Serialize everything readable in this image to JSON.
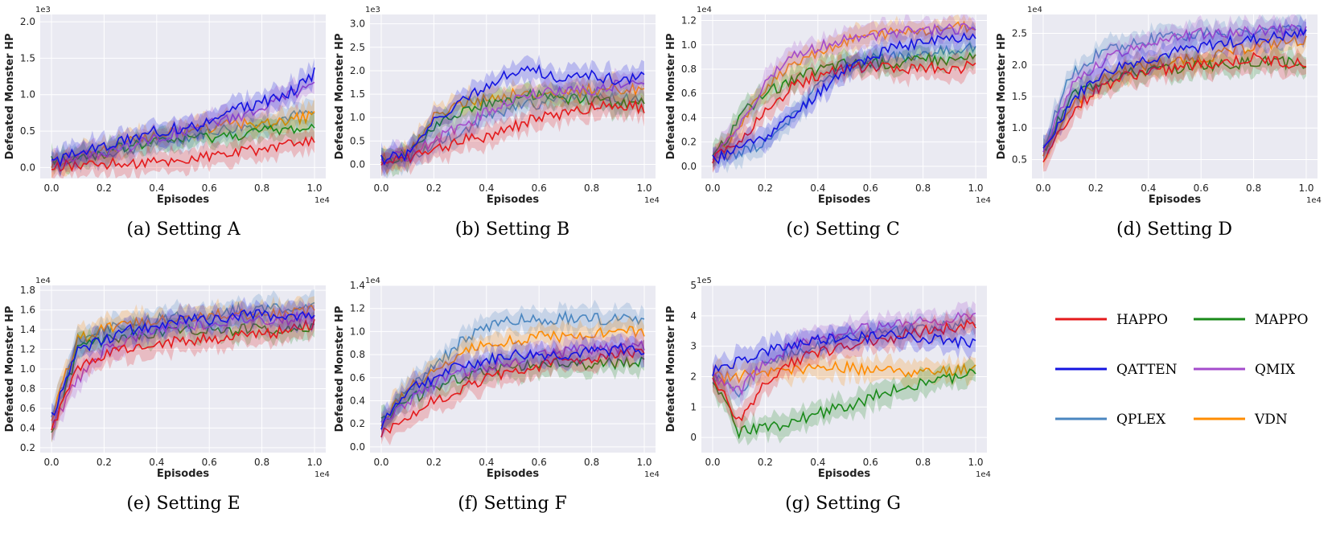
{
  "chart_data": [
    {
      "type": "line",
      "title": "",
      "caption": "(a) Setting A",
      "xlabel": "Episodes",
      "ylabel": "Defeated Monster HP",
      "x_exponent": "1e4",
      "y_exponent": "1e3",
      "xlim": [
        0,
        1.0
      ],
      "ylim": [
        -0.15,
        2.1
      ],
      "xticks": [
        "0.0",
        "0.2",
        "0.4",
        "0.6",
        "0.8",
        "1.0"
      ],
      "yticks": [
        "0.0",
        "0.5",
        "1.0",
        "1.5",
        "2.0"
      ],
      "x": [
        0,
        0.1,
        0.2,
        0.3,
        0.4,
        0.5,
        0.6,
        0.7,
        0.8,
        0.9,
        1.0
      ],
      "series": [
        {
          "name": "HAPPO",
          "values": [
            0.02,
            0.03,
            0.05,
            0.05,
            0.07,
            0.1,
            0.15,
            0.2,
            0.25,
            0.3,
            0.35
          ]
        },
        {
          "name": "MAPPO",
          "values": [
            0.1,
            0.12,
            0.2,
            0.3,
            0.35,
            0.4,
            0.42,
            0.45,
            0.5,
            0.52,
            0.55
          ]
        },
        {
          "name": "QATTEN",
          "values": [
            0.05,
            0.2,
            0.3,
            0.4,
            0.5,
            0.55,
            0.6,
            0.8,
            0.9,
            1.0,
            1.3
          ]
        },
        {
          "name": "QMIX",
          "values": [
            0.08,
            0.15,
            0.2,
            0.3,
            0.4,
            0.5,
            0.6,
            0.7,
            0.8,
            1.0,
            1.1
          ]
        },
        {
          "name": "QPLEX",
          "values": [
            0.1,
            0.15,
            0.2,
            0.25,
            0.35,
            0.4,
            0.5,
            0.55,
            0.6,
            0.7,
            0.75
          ]
        },
        {
          "name": "VDN",
          "values": [
            0.05,
            0.15,
            0.25,
            0.35,
            0.45,
            0.5,
            0.55,
            0.6,
            0.6,
            0.65,
            0.7
          ]
        }
      ]
    },
    {
      "type": "line",
      "title": "",
      "caption": "(b) Setting B",
      "xlabel": "Episodes",
      "ylabel": "Defeated Monster HP",
      "x_exponent": "1e4",
      "y_exponent": "1e3",
      "xlim": [
        0,
        1.0
      ],
      "ylim": [
        -0.3,
        3.2
      ],
      "xticks": [
        "0.0",
        "0.2",
        "0.4",
        "0.6",
        "0.8",
        "1.0"
      ],
      "yticks": [
        "0.0",
        "0.5",
        "1.0",
        "1.5",
        "2.0",
        "2.5",
        "3.0"
      ],
      "x": [
        0,
        0.1,
        0.2,
        0.3,
        0.4,
        0.5,
        0.6,
        0.7,
        0.8,
        0.9,
        1.0
      ],
      "series": [
        {
          "name": "HAPPO",
          "values": [
            0.05,
            0.1,
            0.3,
            0.5,
            0.6,
            0.8,
            1.0,
            1.1,
            1.2,
            1.3,
            1.2
          ]
        },
        {
          "name": "MAPPO",
          "values": [
            0.1,
            0.2,
            0.8,
            1.1,
            1.3,
            1.4,
            1.5,
            1.4,
            1.4,
            1.3,
            1.4
          ]
        },
        {
          "name": "QATTEN",
          "values": [
            0.1,
            0.2,
            0.9,
            1.3,
            1.7,
            2.0,
            2.0,
            1.8,
            1.9,
            1.8,
            1.9
          ]
        },
        {
          "name": "QMIX",
          "values": [
            0.1,
            0.2,
            0.5,
            0.8,
            1.1,
            1.4,
            1.5,
            1.6,
            1.6,
            1.7,
            1.7
          ]
        },
        {
          "name": "QPLEX",
          "values": [
            0.05,
            0.15,
            0.4,
            0.7,
            1.0,
            1.2,
            1.3,
            1.4,
            1.5,
            1.4,
            1.4
          ]
        },
        {
          "name": "VDN",
          "values": [
            0.1,
            0.2,
            1.0,
            1.3,
            1.4,
            1.5,
            1.5,
            1.5,
            1.6,
            1.6,
            1.6
          ]
        }
      ]
    },
    {
      "type": "line",
      "title": "",
      "caption": "(c) Setting C",
      "xlabel": "Episodes",
      "ylabel": "Defeated Monster HP",
      "x_exponent": "1e4",
      "y_exponent": "1e4",
      "xlim": [
        0,
        1.0
      ],
      "ylim": [
        -0.1,
        1.25
      ],
      "xticks": [
        "0.0",
        "0.2",
        "0.4",
        "0.6",
        "0.8",
        "1.0"
      ],
      "yticks": [
        "0.0",
        "0.2",
        "0.4",
        "0.6",
        "0.8",
        "1.0",
        "1.2"
      ],
      "x": [
        0,
        0.1,
        0.2,
        0.3,
        0.4,
        0.5,
        0.6,
        0.7,
        0.8,
        0.9,
        1.0
      ],
      "series": [
        {
          "name": "HAPPO",
          "values": [
            0.05,
            0.2,
            0.45,
            0.65,
            0.75,
            0.8,
            0.82,
            0.8,
            0.82,
            0.8,
            0.83
          ]
        },
        {
          "name": "MAPPO",
          "values": [
            0.05,
            0.4,
            0.6,
            0.7,
            0.8,
            0.85,
            0.85,
            0.85,
            0.88,
            0.88,
            0.9
          ]
        },
        {
          "name": "QATTEN",
          "values": [
            0.05,
            0.15,
            0.25,
            0.4,
            0.6,
            0.8,
            0.9,
            0.98,
            1.02,
            1.05,
            1.08
          ]
        },
        {
          "name": "QMIX",
          "values": [
            0.05,
            0.3,
            0.7,
            0.9,
            0.98,
            1.04,
            1.08,
            1.1,
            1.12,
            1.13,
            1.15
          ]
        },
        {
          "name": "QPLEX",
          "values": [
            0.05,
            0.1,
            0.2,
            0.4,
            0.65,
            0.8,
            0.88,
            0.9,
            0.92,
            0.95,
            0.97
          ]
        },
        {
          "name": "VDN",
          "values": [
            0.05,
            0.3,
            0.65,
            0.85,
            0.95,
            1.02,
            1.08,
            1.1,
            1.12,
            1.14,
            1.15
          ]
        }
      ]
    },
    {
      "type": "line",
      "title": "",
      "caption": "(d) Setting D",
      "xlabel": "Episodes",
      "ylabel": "Defeated Monster HP",
      "x_exponent": "1e4",
      "y_exponent": "1e4",
      "xlim": [
        0,
        1.0
      ],
      "ylim": [
        0.2,
        2.8
      ],
      "xticks": [
        "0.0",
        "0.2",
        "0.4",
        "0.6",
        "0.8",
        "1.0"
      ],
      "yticks": [
        "0.5",
        "1.0",
        "1.5",
        "2.0",
        "2.5"
      ],
      "x": [
        0,
        0.1,
        0.2,
        0.3,
        0.4,
        0.5,
        0.6,
        0.7,
        0.8,
        0.9,
        1.0
      ],
      "series": [
        {
          "name": "HAPPO",
          "values": [
            0.5,
            1.2,
            1.6,
            1.8,
            1.9,
            1.95,
            2.0,
            2.05,
            2.1,
            2.05,
            2.0
          ]
        },
        {
          "name": "MAPPO",
          "values": [
            0.6,
            1.5,
            1.7,
            1.85,
            1.9,
            1.95,
            2.0,
            2.0,
            2.05,
            2.05,
            2.0
          ]
        },
        {
          "name": "QATTEN",
          "values": [
            0.6,
            1.4,
            1.8,
            2.0,
            2.1,
            2.2,
            2.3,
            2.35,
            2.4,
            2.45,
            2.5
          ]
        },
        {
          "name": "QMIX",
          "values": [
            0.6,
            1.6,
            2.0,
            2.2,
            2.35,
            2.45,
            2.5,
            2.52,
            2.55,
            2.55,
            2.55
          ]
        },
        {
          "name": "QPLEX",
          "values": [
            0.7,
            1.8,
            2.15,
            2.3,
            2.4,
            2.45,
            2.5,
            2.5,
            2.52,
            2.55,
            2.58
          ]
        },
        {
          "name": "VDN",
          "values": [
            0.6,
            1.3,
            1.7,
            1.9,
            2.0,
            2.05,
            2.1,
            2.2,
            2.3,
            2.35,
            2.4
          ]
        }
      ]
    },
    {
      "type": "line",
      "title": "",
      "caption": "(e) Setting E",
      "xlabel": "Episodes",
      "ylabel": "Defeated Monster HP",
      "x_exponent": "1e4",
      "y_exponent": "1e4",
      "xlim": [
        0,
        1.0
      ],
      "ylim": [
        0.15,
        1.85
      ],
      "xticks": [
        "0.0",
        "0.2",
        "0.4",
        "0.6",
        "0.8",
        "1.0"
      ],
      "yticks": [
        "0.2",
        "0.4",
        "0.6",
        "0.8",
        "1.0",
        "1.2",
        "1.4",
        "1.6",
        "1.8"
      ],
      "x": [
        0,
        0.1,
        0.2,
        0.3,
        0.4,
        0.5,
        0.6,
        0.7,
        0.8,
        0.9,
        1.0
      ],
      "series": [
        {
          "name": "HAPPO",
          "values": [
            0.4,
            1.0,
            1.15,
            1.2,
            1.25,
            1.3,
            1.3,
            1.35,
            1.35,
            1.4,
            1.45
          ]
        },
        {
          "name": "MAPPO",
          "values": [
            0.3,
            1.2,
            1.3,
            1.35,
            1.35,
            1.4,
            1.4,
            1.4,
            1.4,
            1.4,
            1.4
          ]
        },
        {
          "name": "QATTEN",
          "values": [
            0.5,
            1.2,
            1.3,
            1.4,
            1.45,
            1.5,
            1.5,
            1.55,
            1.55,
            1.55,
            1.55
          ]
        },
        {
          "name": "QMIX",
          "values": [
            0.4,
            0.9,
            1.2,
            1.3,
            1.4,
            1.45,
            1.45,
            1.5,
            1.5,
            1.5,
            1.55
          ]
        },
        {
          "name": "QPLEX",
          "values": [
            0.5,
            1.3,
            1.4,
            1.45,
            1.5,
            1.55,
            1.55,
            1.6,
            1.62,
            1.62,
            1.62
          ]
        },
        {
          "name": "VDN",
          "values": [
            0.5,
            1.3,
            1.4,
            1.45,
            1.5,
            1.52,
            1.55,
            1.55,
            1.55,
            1.55,
            1.6
          ]
        }
      ]
    },
    {
      "type": "line",
      "title": "",
      "caption": "(f) Setting F",
      "xlabel": "Episodes",
      "ylabel": "Defeated Monster HP",
      "x_exponent": "1e4",
      "y_exponent": "1e4",
      "xlim": [
        0,
        1.0
      ],
      "ylim": [
        -0.05,
        1.4
      ],
      "xticks": [
        "0.0",
        "0.2",
        "0.4",
        "0.6",
        "0.8",
        "1.0"
      ],
      "yticks": [
        "0.0",
        "0.2",
        "0.4",
        "0.6",
        "0.8",
        "1.0",
        "1.2",
        "1.4"
      ],
      "x": [
        0,
        0.1,
        0.2,
        0.3,
        0.4,
        0.5,
        0.6,
        0.7,
        0.8,
        0.9,
        1.0
      ],
      "series": [
        {
          "name": "HAPPO",
          "values": [
            0.1,
            0.25,
            0.4,
            0.5,
            0.6,
            0.65,
            0.7,
            0.75,
            0.78,
            0.8,
            0.8
          ]
        },
        {
          "name": "MAPPO",
          "values": [
            0.2,
            0.4,
            0.5,
            0.6,
            0.65,
            0.7,
            0.7,
            0.72,
            0.72,
            0.72,
            0.75
          ]
        },
        {
          "name": "QATTEN",
          "values": [
            0.2,
            0.5,
            0.6,
            0.7,
            0.75,
            0.8,
            0.8,
            0.8,
            0.82,
            0.85,
            0.85
          ]
        },
        {
          "name": "QMIX",
          "values": [
            0.2,
            0.4,
            0.55,
            0.65,
            0.7,
            0.75,
            0.8,
            0.82,
            0.85,
            0.85,
            0.88
          ]
        },
        {
          "name": "QPLEX",
          "values": [
            0.2,
            0.5,
            0.7,
            0.9,
            1.05,
            1.1,
            1.1,
            1.12,
            1.12,
            1.1,
            1.1
          ]
        },
        {
          "name": "VDN",
          "values": [
            0.2,
            0.5,
            0.65,
            0.8,
            0.9,
            0.92,
            0.95,
            0.95,
            0.98,
            1.0,
            1.0
          ]
        }
      ]
    },
    {
      "type": "line",
      "title": "",
      "caption": "(g) Setting G",
      "xlabel": "Episodes",
      "ylabel": "Defeated Monster HP",
      "x_exponent": "1e4",
      "y_exponent": "1e5",
      "xlim": [
        0,
        1.0
      ],
      "ylim": [
        -0.5,
        5.0
      ],
      "xticks": [
        "0.0",
        "0.2",
        "0.4",
        "0.6",
        "0.8",
        "1.0"
      ],
      "yticks": [
        "0",
        "1",
        "2",
        "3",
        "4",
        "5"
      ],
      "x": [
        0,
        0.1,
        0.2,
        0.3,
        0.4,
        0.5,
        0.6,
        0.7,
        0.8,
        0.9,
        1.0
      ],
      "series": [
        {
          "name": "HAPPO",
          "values": [
            2.0,
            0.5,
            1.8,
            2.5,
            2.8,
            3.0,
            3.2,
            3.3,
            3.5,
            3.6,
            3.7
          ]
        },
        {
          "name": "MAPPO",
          "values": [
            2.0,
            0.2,
            0.3,
            0.5,
            0.8,
            1.0,
            1.3,
            1.6,
            1.8,
            1.9,
            2.2
          ]
        },
        {
          "name": "QATTEN",
          "values": [
            2.2,
            2.5,
            2.8,
            3.0,
            3.2,
            3.3,
            3.3,
            3.4,
            3.3,
            3.2,
            3.1
          ]
        },
        {
          "name": "QMIX",
          "values": [
            2.0,
            1.5,
            2.5,
            3.0,
            3.3,
            3.5,
            3.6,
            3.7,
            3.8,
            3.9,
            4.0
          ]
        },
        {
          "name": "QPLEX",
          "values": [
            2.0,
            1.5,
            2.5,
            2.8,
            3.0,
            3.2,
            3.4,
            3.5,
            3.6,
            3.7,
            3.8
          ]
        },
        {
          "name": "VDN",
          "values": [
            2.0,
            2.0,
            2.1,
            2.2,
            2.3,
            2.3,
            2.2,
            2.2,
            2.1,
            2.2,
            2.3
          ]
        }
      ]
    }
  ],
  "legend": {
    "entries": [
      {
        "name": "HAPPO",
        "color": "#e41a1c"
      },
      {
        "name": "MAPPO",
        "color": "#1a8a1a"
      },
      {
        "name": "QATTEN",
        "color": "#1414e0"
      },
      {
        "name": "QMIX",
        "color": "#a44ccc"
      },
      {
        "name": "QPLEX",
        "color": "#4a86c0"
      },
      {
        "name": "VDN",
        "color": "#ff8c00"
      }
    ]
  },
  "colors": {
    "plot_background": "#eaeaf2",
    "grid": "#ffffff"
  }
}
